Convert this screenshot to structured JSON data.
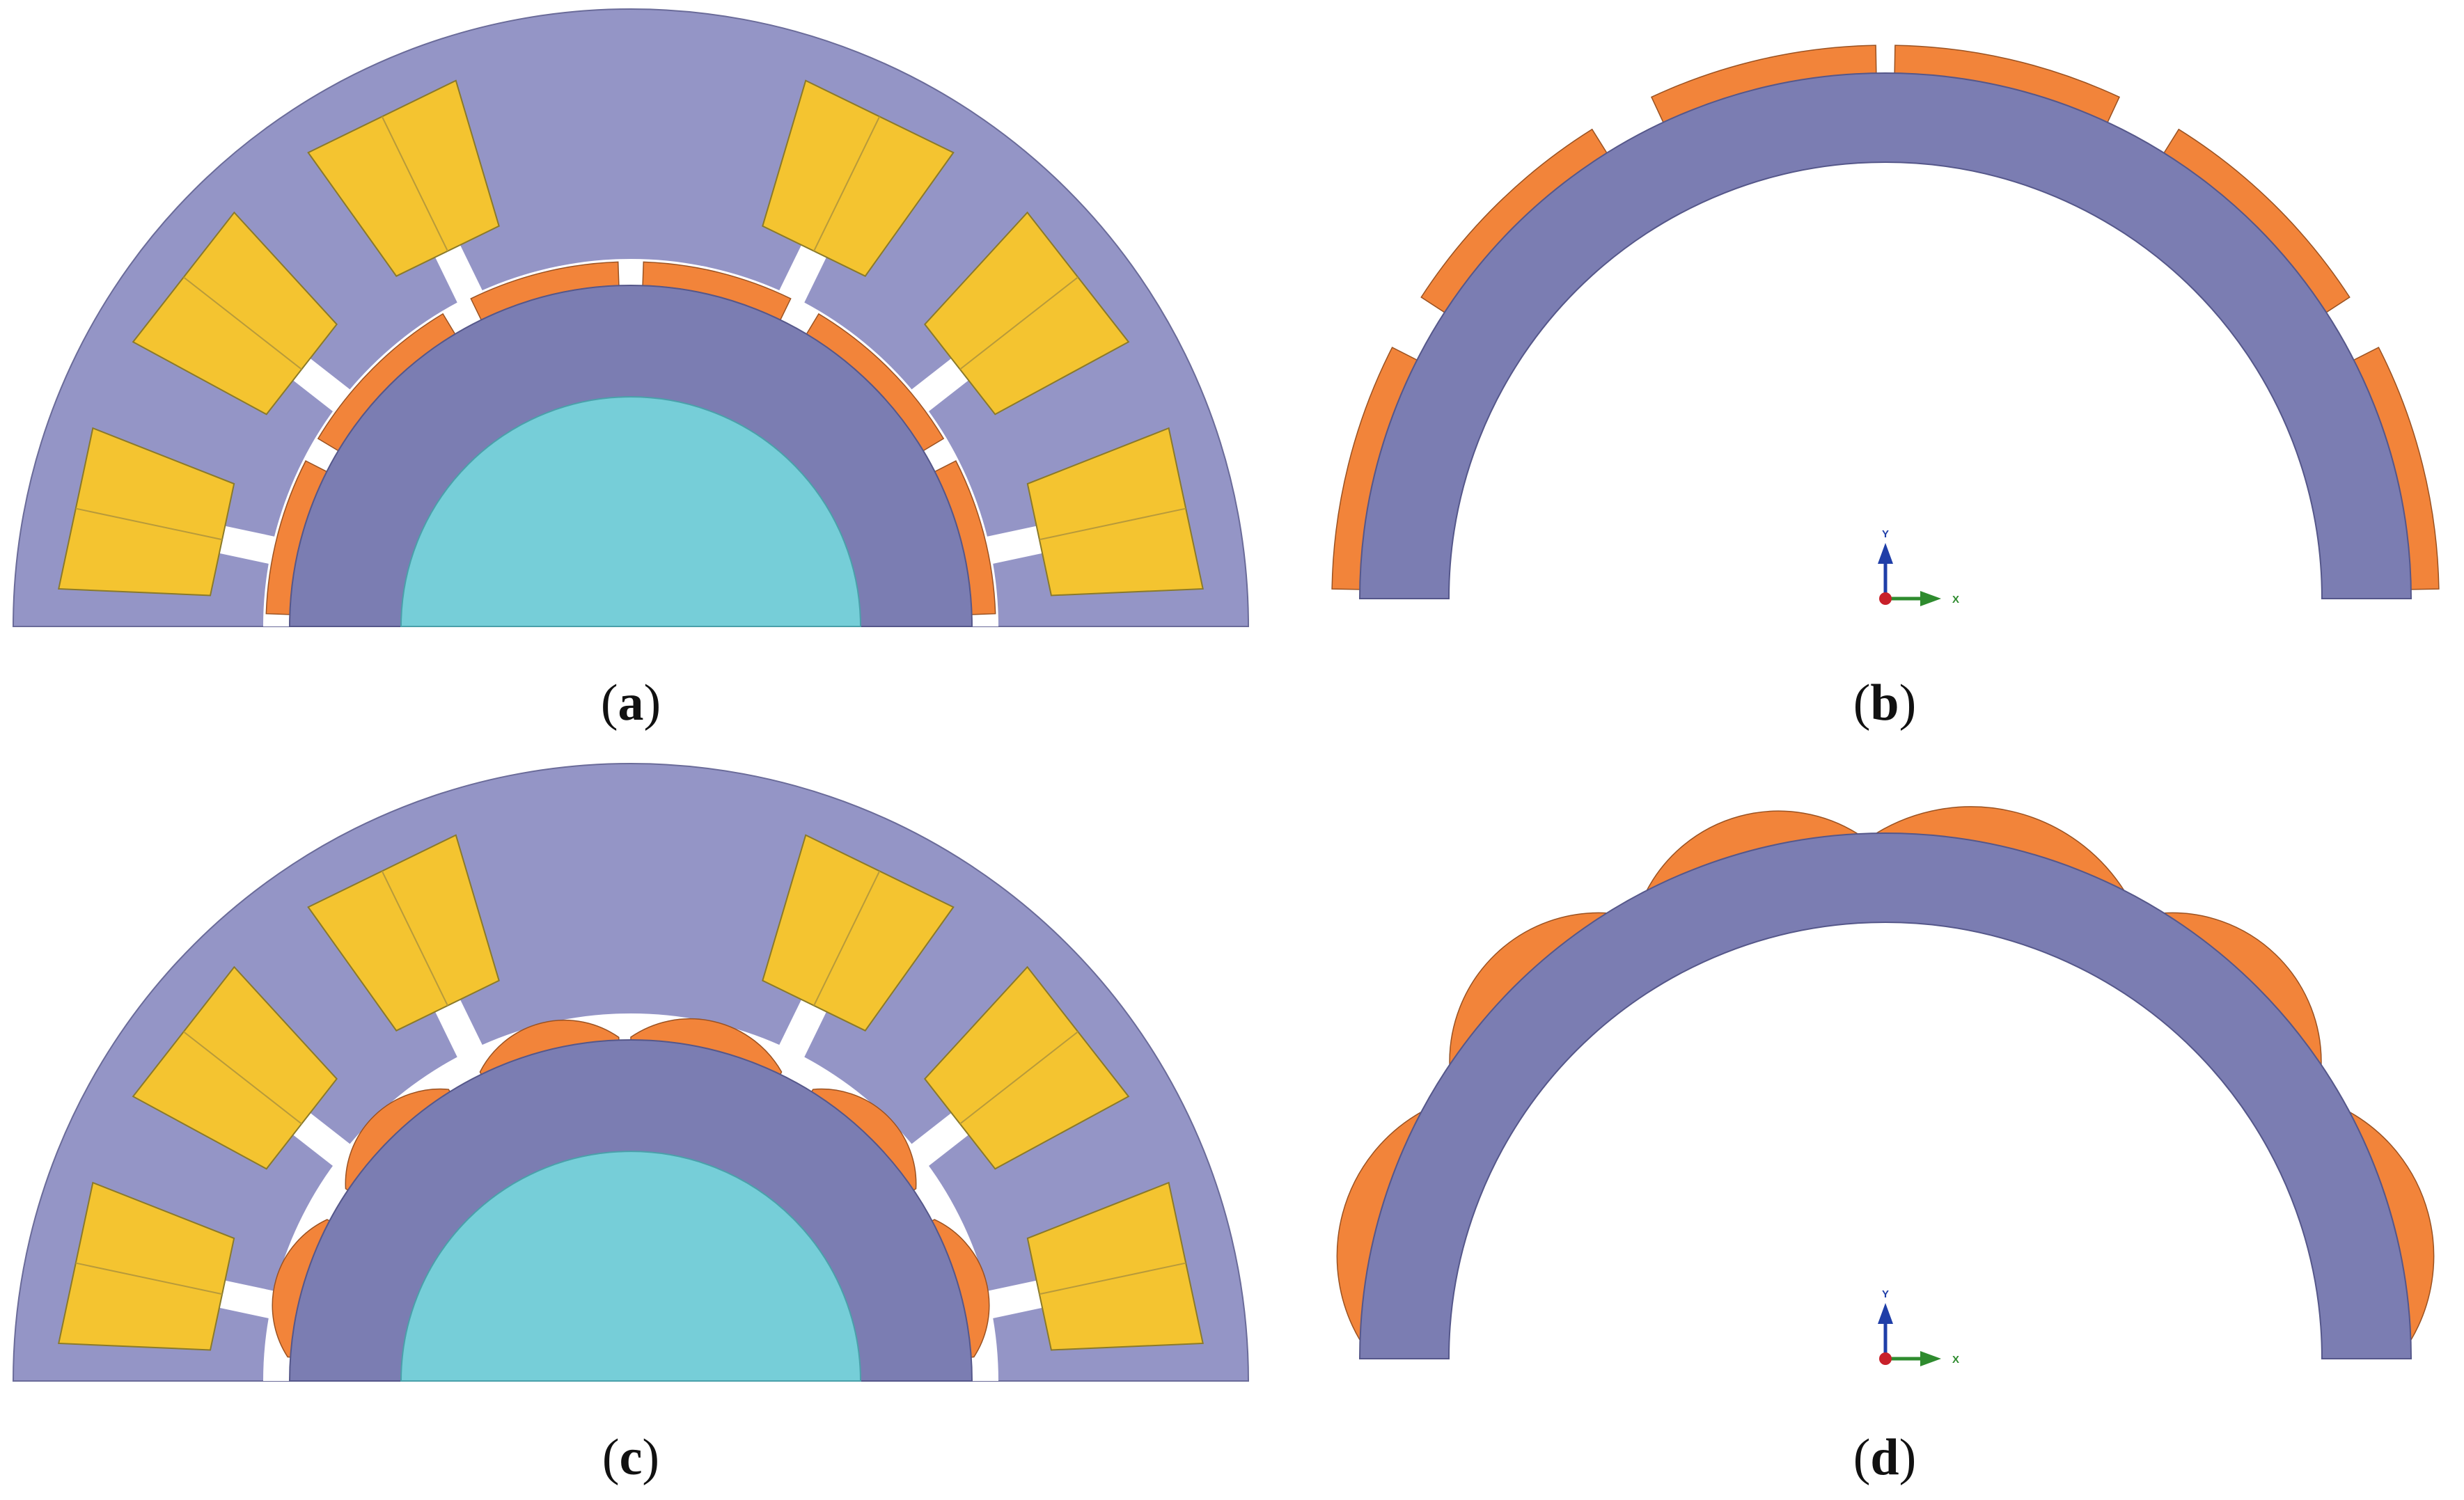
{
  "colors": {
    "stator": "#9495c6",
    "rotor_core": "#7b7db2",
    "shaft": "#76ced8",
    "winding": "#f4c430",
    "magnet": "#f2843a",
    "axis_y": "#1f3ea8",
    "axis_x": "#2e8b2e",
    "axis_origin": "#c8202a"
  },
  "panels": [
    {
      "id": "a",
      "caption_letter": "a",
      "content": "machine cross-section with surface magnets"
    },
    {
      "id": "b",
      "caption_letter": "b",
      "content": "rotor with surface magnets"
    },
    {
      "id": "c",
      "caption_letter": "c",
      "content": "machine cross-section with bread-loaf magnets"
    },
    {
      "id": "d",
      "caption_letter": "d",
      "content": "rotor with bread-loaf magnets"
    }
  ],
  "triad": {
    "y_label": "Y",
    "x_label": "X"
  }
}
